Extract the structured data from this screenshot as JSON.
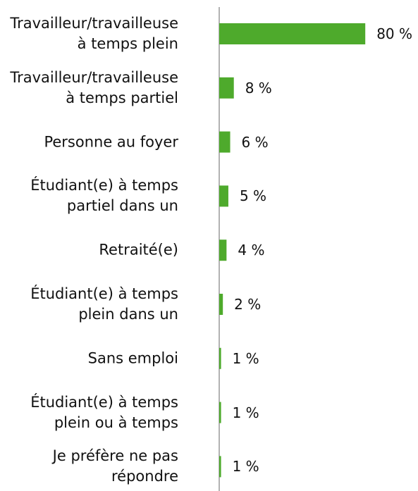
{
  "chart_data": {
    "type": "bar",
    "orientation": "horizontal",
    "color": "#4eaa2c",
    "categories": [
      "Travailleur/travailleuse\nà temps plein",
      "Travailleur/travailleuse\nà temps partiel",
      "Personne au foyer",
      "Étudiant(e) à temps\npartiel dans un",
      "Retraité(e)",
      "Étudiant(e) à temps\nplein dans un",
      "Sans emploi",
      "Étudiant(e) à temps\nplein ou à temps",
      "Je préfère ne pas\nrépondre"
    ],
    "values": [
      80,
      8,
      6,
      5,
      4,
      2,
      1,
      1,
      1
    ],
    "value_labels": [
      "80 %",
      "8 %",
      "6 %",
      "5 %",
      "4 %",
      "2 %",
      "1 %",
      "1 %",
      "1 %"
    ]
  }
}
